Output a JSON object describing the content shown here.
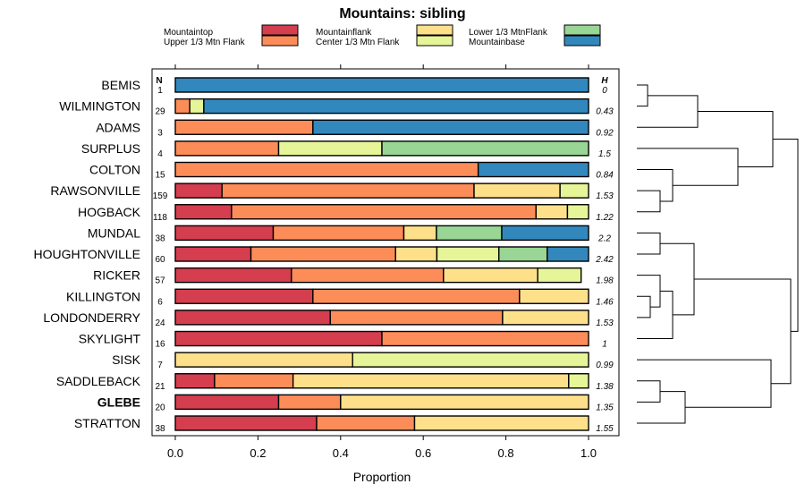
{
  "chart_data": {
    "type": "bar",
    "orientation": "horizontal",
    "stacked": true,
    "title": "Mountains: sibling",
    "xlabel": "Proportion",
    "ylabel": "",
    "xlim": [
      0,
      1
    ],
    "x_ticks": [
      "0.0",
      "0.2",
      "0.4",
      "0.6",
      "0.8",
      "1.0"
    ],
    "n_header": "N",
    "h_header": "H",
    "bold_site": "GLEBE",
    "legend": [
      {
        "name": "Mountaintop",
        "color": "#d53e4f"
      },
      {
        "name": "Upper 1/3 Mtn Flank",
        "color": "#fc8d59"
      },
      {
        "name": "Mountainflank",
        "color": "#fee08b"
      },
      {
        "name": "Center 1/3 Mtn Flank",
        "color": "#e6f598"
      },
      {
        "name": "Lower 1/3 MtnFlank",
        "color": "#99d594"
      },
      {
        "name": "Mountainbase",
        "color": "#3288bd"
      }
    ],
    "categories": [
      "Mountaintop",
      "Upper 1/3 Mtn Flank",
      "Mountainflank",
      "Center 1/3 Mtn Flank",
      "Lower 1/3 MtnFlank",
      "Mountainbase"
    ],
    "rows": [
      {
        "site": "BEMIS",
        "n": "1",
        "h": "0",
        "values": [
          0,
          0,
          0,
          0,
          0,
          1.0
        ]
      },
      {
        "site": "WILMINGTON",
        "n": "29",
        "h": "0.43",
        "values": [
          0,
          0.035,
          0,
          0.034,
          0,
          0.931
        ]
      },
      {
        "site": "ADAMS",
        "n": "3",
        "h": "0.92",
        "values": [
          0,
          0.333,
          0,
          0,
          0,
          0.667
        ]
      },
      {
        "site": "SURPLUS",
        "n": "4",
        "h": "1.5",
        "values": [
          0,
          0.25,
          0,
          0.25,
          0.5,
          0
        ]
      },
      {
        "site": "COLTON",
        "n": "15",
        "h": "0.84",
        "values": [
          0,
          0.733,
          0,
          0,
          0,
          0.267
        ]
      },
      {
        "site": "RAWSONVILLE",
        "n": "159",
        "h": "1.53",
        "values": [
          0.113,
          0.61,
          0.208,
          0.069,
          0,
          0
        ]
      },
      {
        "site": "HOGBACK",
        "n": "118",
        "h": "1.22",
        "values": [
          0.136,
          0.737,
          0.076,
          0.051,
          0,
          0
        ]
      },
      {
        "site": "MUNDAL",
        "n": "38",
        "h": "2.2",
        "values": [
          0.237,
          0.316,
          0.079,
          0,
          0.158,
          0.21
        ]
      },
      {
        "site": "HOUGHTONVILLE",
        "n": "60",
        "h": "2.42",
        "values": [
          0.183,
          0.35,
          0.1,
          0.15,
          0.117,
          0.1
        ]
      },
      {
        "site": "RICKER",
        "n": "57",
        "h": "1.98",
        "values": [
          0.281,
          0.368,
          0.228,
          0.105,
          0,
          0
        ]
      },
      {
        "site": "KILLINGTON",
        "n": "6",
        "h": "1.46",
        "values": [
          0.333,
          0.5,
          0.167,
          0,
          0,
          0
        ]
      },
      {
        "site": "LONDONDERRY",
        "n": "24",
        "h": "1.53",
        "values": [
          0.375,
          0.417,
          0.208,
          0,
          0,
          0
        ]
      },
      {
        "site": "SKYLIGHT",
        "n": "16",
        "h": "1",
        "values": [
          0.5,
          0.5,
          0,
          0,
          0,
          0
        ]
      },
      {
        "site": "SISK",
        "n": "7",
        "h": "0.99",
        "values": [
          0,
          0,
          0.429,
          0.571,
          0,
          0
        ]
      },
      {
        "site": "SADDLEBACK",
        "n": "21",
        "h": "1.38",
        "values": [
          0.095,
          0.19,
          0.667,
          0.048,
          0,
          0
        ]
      },
      {
        "site": "GLEBE",
        "n": "20",
        "h": "1.35",
        "values": [
          0.25,
          0.15,
          0.6,
          0,
          0,
          0
        ]
      },
      {
        "site": "STRATTON",
        "n": "38",
        "h": "1.55",
        "values": [
          0.342,
          0.237,
          0.421,
          0,
          0,
          0
        ]
      }
    ],
    "dendrogram": "hierarchical clustering of sites (leaf order matches rows)"
  }
}
